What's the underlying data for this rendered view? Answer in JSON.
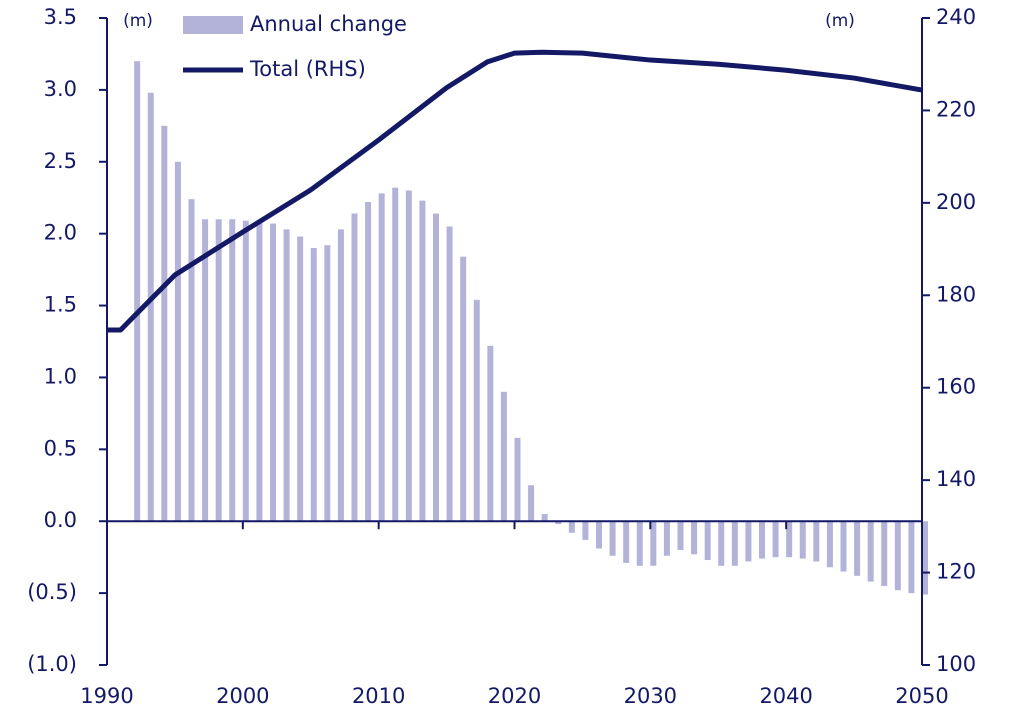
{
  "chart_data": {
    "type": "bar-line",
    "y_unit": "(m)",
    "y2_unit": "(m)",
    "legend": "top-left",
    "xlim": [
      1990,
      2050
    ],
    "xticks": [
      1990,
      2000,
      2010,
      2020,
      2030,
      2040,
      2050
    ],
    "ylim": [
      -1.0,
      3.5
    ],
    "yticks": [
      {
        "value": -1.0,
        "label": "(1.0)"
      },
      {
        "value": -0.5,
        "label": "(0.5)"
      },
      {
        "value": 0.0,
        "label": "0.0"
      },
      0.5,
      {
        "value": 1.0,
        "label": "1.0"
      },
      1.5,
      {
        "value": 2.0,
        "label": "2.0"
      },
      2.5,
      {
        "value": 3.0,
        "label": "3.0"
      },
      3.5
    ],
    "y2lim": [
      100,
      240
    ],
    "y2ticks": [
      100,
      120,
      140,
      160,
      180,
      200,
      220,
      240
    ],
    "series": [
      {
        "name": "Annual change",
        "type": "bar",
        "color": "#b3b3d9",
        "x": [
          1992,
          1993,
          1994,
          1995,
          1996,
          1997,
          1998,
          1999,
          2000,
          2001,
          2002,
          2003,
          2004,
          2005,
          2006,
          2007,
          2008,
          2009,
          2010,
          2011,
          2012,
          2013,
          2014,
          2015,
          2016,
          2017,
          2018,
          2019,
          2020,
          2021,
          2022,
          2023,
          2024,
          2025,
          2026,
          2027,
          2028,
          2029,
          2030,
          2031,
          2032,
          2033,
          2034,
          2035,
          2036,
          2037,
          2038,
          2039,
          2040,
          2041,
          2042,
          2043,
          2044,
          2045,
          2046,
          2047,
          2048,
          2049,
          2050
        ],
        "values": [
          3.2,
          2.98,
          2.75,
          2.5,
          2.24,
          2.1,
          2.1,
          2.1,
          2.09,
          2.09,
          2.07,
          2.03,
          1.98,
          1.9,
          1.92,
          2.03,
          2.14,
          2.22,
          2.28,
          2.32,
          2.3,
          2.23,
          2.14,
          2.05,
          1.84,
          1.54,
          1.22,
          0.9,
          0.58,
          0.25,
          0.05,
          -0.02,
          -0.08,
          -0.13,
          -0.19,
          -0.24,
          -0.29,
          -0.31,
          -0.31,
          -0.24,
          -0.2,
          -0.23,
          -0.27,
          -0.31,
          -0.31,
          -0.28,
          -0.26,
          -0.25,
          -0.25,
          -0.26,
          -0.28,
          -0.32,
          -0.35,
          -0.38,
          -0.42,
          -0.45,
          -0.48,
          -0.5,
          -0.51
        ]
      },
      {
        "name": "Total (RHS)",
        "type": "line",
        "axis": "y2",
        "color": "#141966",
        "x": [
          1990,
          1991,
          1995,
          2000,
          2005,
          2010,
          2015,
          2018,
          2020,
          2022,
          2025,
          2030,
          2035,
          2040,
          2045,
          2050
        ],
        "values": [
          172.5,
          172.5,
          184.4,
          193.7,
          202.8,
          213.6,
          224.9,
          230.5,
          232.4,
          232.6,
          232.4,
          230.9,
          230.0,
          228.7,
          227.0,
          224.4
        ]
      }
    ]
  }
}
